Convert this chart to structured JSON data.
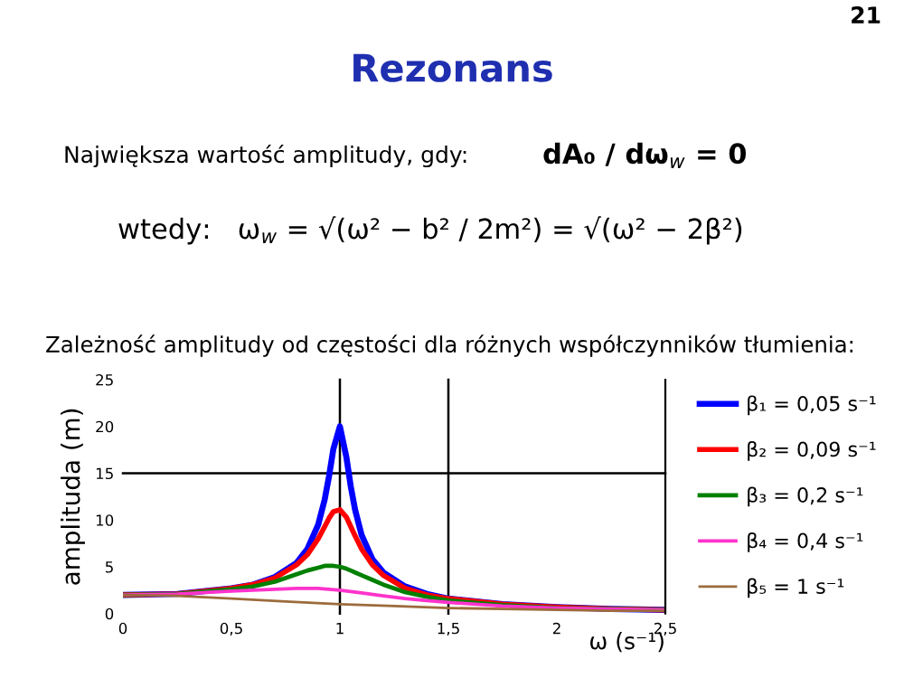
{
  "chart_data": {
    "type": "line",
    "title": "Rezonans",
    "subtitle": "Zależność amplitudy od częstości dla różnych współczynników tłumienia:",
    "annotations": [
      "21",
      "Największa wartość amplitudy, gdy:",
      "dA₀ / dω$_{w}$ = 0",
      "wtedy:   ω$_{w}$ = √(ω² − b² / 2m²) = √(ω² − 2β²)"
    ],
    "xlabel": "ω (s⁻¹)",
    "ylabel": "amplituda (m)",
    "series": [
      {
        "name": "β₁ = 0,05 s⁻¹",
        "color": "#0000ff",
        "x": [
          0,
          0.25,
          0.5,
          0.6,
          0.7,
          0.8,
          0.85,
          0.9,
          0.93,
          0.95,
          0.97,
          1,
          1.03,
          1.05,
          1.07,
          1.1,
          1.15,
          1.2,
          1.3,
          1.4,
          1.5,
          1.75,
          2,
          2.25,
          2.5
        ],
        "values": [
          2.0,
          2.1,
          2.7,
          3.1,
          3.9,
          5.4,
          6.9,
          9.5,
          12.2,
          14.7,
          17.6,
          20.0,
          16.7,
          13.6,
          11.1,
          8.4,
          5.8,
          4.4,
          2.9,
          2.1,
          1.6,
          1.0,
          0.7,
          0.5,
          0.4
        ]
      },
      {
        "name": "β₂ = 0,09 s⁻¹",
        "color": "#ff0000",
        "x": [
          0,
          0.25,
          0.5,
          0.6,
          0.7,
          0.8,
          0.85,
          0.9,
          0.93,
          0.95,
          0.97,
          1,
          1.03,
          1.05,
          1.07,
          1.1,
          1.15,
          1.2,
          1.3,
          1.4,
          1.5,
          1.75,
          2,
          2.25,
          2.5
        ],
        "values": [
          2.0,
          2.1,
          2.7,
          3.1,
          3.8,
          5.2,
          6.3,
          8.0,
          9.3,
          10.2,
          10.9,
          11.1,
          10.3,
          9.3,
          8.3,
          6.9,
          5.2,
          4.1,
          2.7,
          2.0,
          1.6,
          1.0,
          0.7,
          0.5,
          0.4
        ]
      },
      {
        "name": "β₃ = 0,2 s⁻¹",
        "color": "#008000",
        "x": [
          0,
          0.25,
          0.5,
          0.6,
          0.7,
          0.8,
          0.85,
          0.9,
          0.93,
          0.95,
          0.97,
          1,
          1.03,
          1.05,
          1.07,
          1.1,
          1.15,
          1.2,
          1.3,
          1.4,
          1.5,
          1.75,
          2,
          2.25,
          2.5
        ],
        "values": [
          2.0,
          2.1,
          2.6,
          2.9,
          3.4,
          4.2,
          4.6,
          4.9,
          5.1,
          5.1,
          5.1,
          5.0,
          4.8,
          4.6,
          4.4,
          4.1,
          3.6,
          3.1,
          2.3,
          1.8,
          1.4,
          0.9,
          0.6,
          0.5,
          0.4
        ]
      },
      {
        "name": "β₄ = 0,4 s⁻¹",
        "color": "#ff33cc",
        "x": [
          0,
          0.25,
          0.5,
          0.6,
          0.7,
          0.8,
          0.85,
          0.9,
          0.95,
          1,
          1.1,
          1.2,
          1.3,
          1.4,
          1.5,
          1.75,
          2,
          2.25,
          2.5
        ],
        "values": [
          2.0,
          2.1,
          2.4,
          2.5,
          2.6,
          2.7,
          2.7,
          2.7,
          2.6,
          2.5,
          2.2,
          1.9,
          1.6,
          1.4,
          1.2,
          0.8,
          0.6,
          0.5,
          0.4
        ]
      },
      {
        "name": "β₅ = 1 s⁻¹",
        "color": "#9c6b3c",
        "x": [
          0,
          0.25,
          0.5,
          0.75,
          1,
          1.25,
          1.5,
          1.75,
          2,
          2.25,
          2.5
        ],
        "values": [
          2.0,
          1.9,
          1.6,
          1.3,
          1.0,
          0.8,
          0.6,
          0.5,
          0.4,
          0.3,
          0.3
        ]
      }
    ],
    "xlim": [
      0,
      2.5
    ],
    "ylim": [
      0,
      25
    ],
    "xticks": [
      0,
      {
        "value": 0.5,
        "label": "0,5"
      },
      1,
      {
        "value": 1.5,
        "label": "1,5"
      },
      2,
      {
        "value": 2.5,
        "label": "2,5"
      }
    ],
    "yticks": [
      0,
      5,
      10,
      15,
      20,
      25
    ],
    "ref_lines": [
      {
        "axis": "x",
        "value": 1,
        "color": "#000000"
      },
      {
        "axis": "x",
        "value": 1.5,
        "color": "#000000"
      },
      {
        "axis": "y",
        "value": 15,
        "color": "#000000"
      }
    ],
    "legend": "right",
    "grid": false
  }
}
